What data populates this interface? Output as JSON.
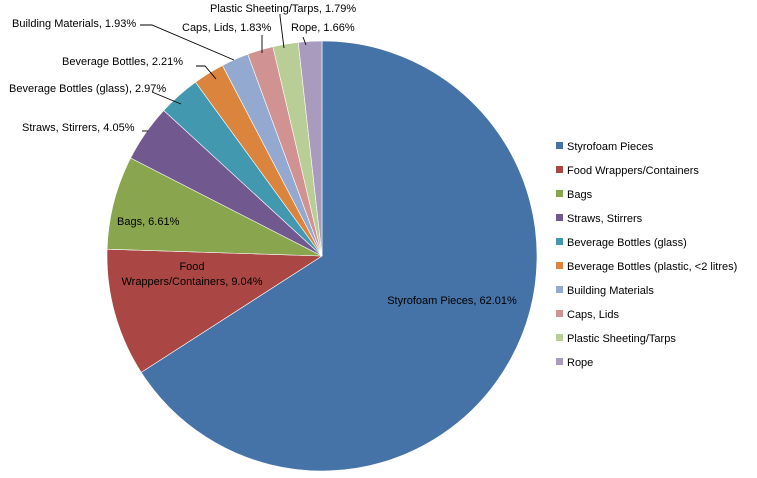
{
  "chart_data": {
    "type": "pie",
    "title": "",
    "legend_position": "right",
    "slices": [
      {
        "name": "Styrofoam Pieces",
        "value": 62.01,
        "data_label": "Styrofoam Pieces, 62.01%",
        "color": "#4572A7"
      },
      {
        "name": "Food Wrappers/Containers",
        "value": 9.04,
        "data_label": "Food Wrappers/Containers, 9.04%",
        "color": "#AA4643"
      },
      {
        "name": "Bags",
        "value": 6.61,
        "data_label": "Bags, 6.61%",
        "color": "#89A54E"
      },
      {
        "name": "Straws, Stirrers",
        "value": 4.05,
        "data_label": "Straws, Stirrers, 4.05%",
        "color": "#71588F"
      },
      {
        "name": "Beverage Bottles (glass)",
        "value": 2.97,
        "data_label": "Beverage Bottles (glass), 2.97%",
        "color": "#4198AF"
      },
      {
        "name": "Beverage Bottles (plastic, <2 litres)",
        "value": 2.21,
        "data_label": "Beverage Bottles, 2.21%",
        "color": "#DB843D"
      },
      {
        "name": "Building Materials",
        "value": 1.93,
        "data_label": "Building Materials, 1.93%",
        "color": "#93A9CF"
      },
      {
        "name": "Caps, Lids",
        "value": 1.83,
        "data_label": "Caps, Lids, 1.83%",
        "color": "#D19392"
      },
      {
        "name": "Plastic Sheeting/Tarps",
        "value": 1.79,
        "data_label": "Plastic Sheeting/Tarps, 1.79%",
        "color": "#B9CD96"
      },
      {
        "name": "Rope",
        "value": 1.66,
        "data_label": "Rope, 1.66%",
        "color": "#A99BBD"
      }
    ]
  }
}
